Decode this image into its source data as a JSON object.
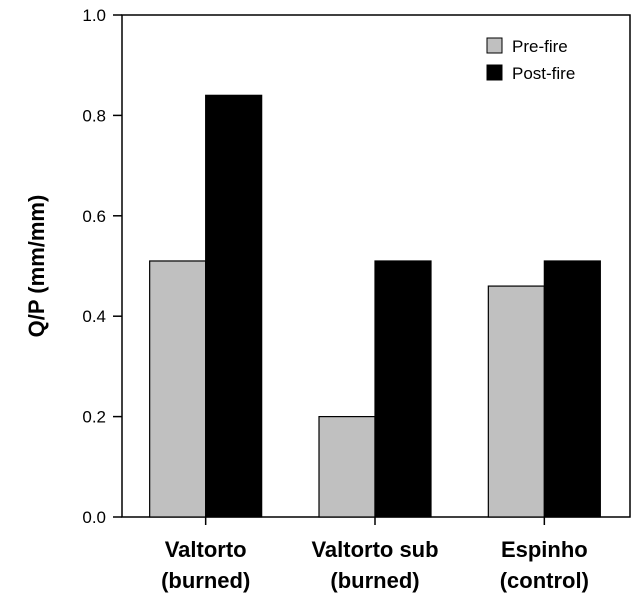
{
  "chart_data": {
    "type": "bar",
    "ylabel": "Q/P (mm/mm)",
    "xlabel": "",
    "ylim": [
      0.0,
      1.0
    ],
    "yticks": [
      "0.0",
      "0.2",
      "0.4",
      "0.6",
      "0.8",
      "1.0"
    ],
    "categories": [
      [
        "Valtorto",
        "(burned)"
      ],
      [
        "Valtorto sub",
        "(burned)"
      ],
      [
        "Espinho",
        "(control)"
      ]
    ],
    "series": [
      {
        "name": "Pre-fire",
        "color": "#c0c0c0",
        "values": [
          0.51,
          0.2,
          0.46
        ]
      },
      {
        "name": "Post-fire",
        "color": "#000000",
        "values": [
          0.84,
          0.51,
          0.51
        ]
      }
    ],
    "legend": "top-right",
    "grid": false
  }
}
